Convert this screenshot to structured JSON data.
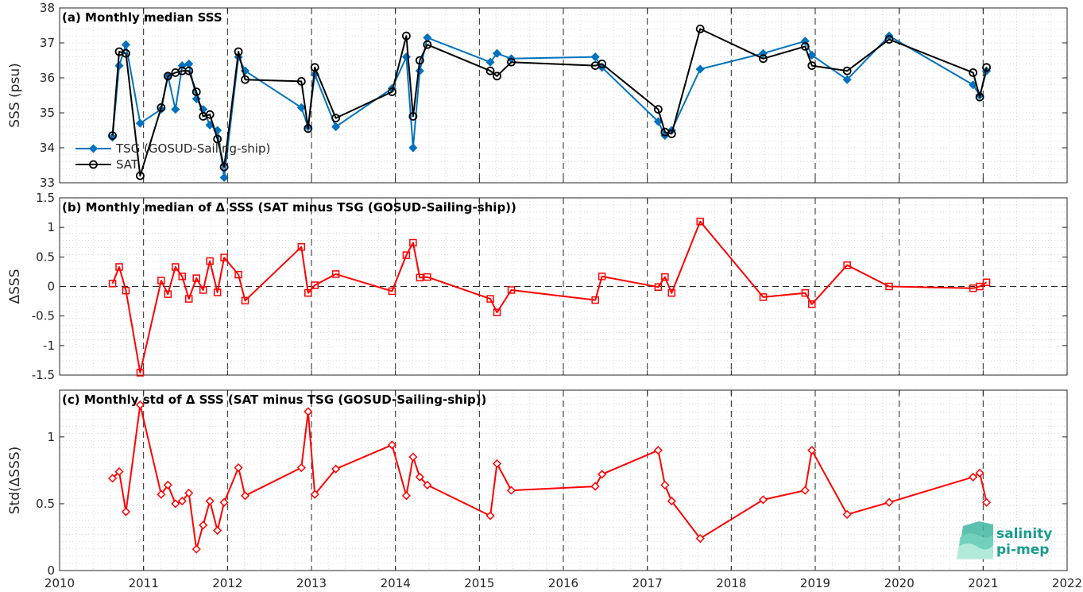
{
  "colors": {
    "tsg": "#0072BD",
    "sat": "#000000",
    "delta": "#FF0000",
    "grid": "#cccccc",
    "axis": "#262626"
  },
  "logo": {
    "line1": "salinity",
    "line2": "pi-mep",
    "icon": "salinity-wave-icon"
  },
  "x_ticks": [
    "2010",
    "2011",
    "2012",
    "2013",
    "2014",
    "2015",
    "2016",
    "2017",
    "2018",
    "2019",
    "2020",
    "2021",
    "2022"
  ],
  "chart_data": [
    {
      "type": "line",
      "title": "(a) Monthly median SSS",
      "ylabel": "SSS (psu)",
      "xlim": [
        2010,
        2022
      ],
      "ylim": [
        33,
        38
      ],
      "yticks": [
        "33",
        "34",
        "35",
        "36",
        "37",
        "38"
      ],
      "legend_position": "bottom-left",
      "series": [
        {
          "name": "TSG (GOSUD-Sailing-ship)",
          "marker": "diamond",
          "x": [
            2010.63,
            2010.71,
            2010.79,
            2010.96,
            2011.21,
            2011.29,
            2011.38,
            2011.46,
            2011.54,
            2011.63,
            2011.71,
            2011.79,
            2011.88,
            2011.96,
            2012.13,
            2012.21,
            2012.88,
            2012.96,
            2013.04,
            2013.29,
            2013.96,
            2014.13,
            2014.21,
            2014.29,
            2014.38,
            2015.13,
            2015.21,
            2015.38,
            2016.38,
            2016.46,
            2017.13,
            2017.21,
            2017.29,
            2017.63,
            2018.38,
            2018.88,
            2018.96,
            2019.38,
            2019.88,
            2020.88,
            2020.96,
            2021.04
          ],
          "y": [
            34.3,
            36.35,
            36.95,
            34.7,
            35.1,
            36.05,
            35.1,
            36.35,
            36.4,
            35.4,
            35.1,
            34.65,
            34.5,
            33.15,
            36.6,
            36.2,
            35.15,
            34.6,
            36.1,
            34.6,
            35.7,
            36.6,
            34.0,
            36.2,
            37.15,
            36.45,
            36.7,
            36.55,
            36.6,
            36.3,
            34.75,
            34.35,
            34.5,
            36.25,
            36.7,
            37.05,
            36.65,
            35.95,
            37.2,
            35.8,
            35.5,
            36.2
          ]
        },
        {
          "name": "SAT",
          "marker": "circle",
          "x": [
            2010.63,
            2010.71,
            2010.79,
            2010.96,
            2011.21,
            2011.29,
            2011.38,
            2011.46,
            2011.54,
            2011.63,
            2011.71,
            2011.79,
            2011.88,
            2011.96,
            2012.13,
            2012.21,
            2012.88,
            2012.96,
            2013.04,
            2013.29,
            2013.96,
            2014.13,
            2014.21,
            2014.29,
            2014.38,
            2015.13,
            2015.21,
            2015.38,
            2016.38,
            2016.46,
            2017.13,
            2017.21,
            2017.29,
            2017.63,
            2018.38,
            2018.88,
            2018.96,
            2019.38,
            2019.88,
            2020.88,
            2020.96,
            2021.04
          ],
          "y": [
            34.35,
            36.75,
            36.7,
            33.2,
            35.15,
            36.05,
            36.15,
            36.2,
            36.2,
            35.6,
            34.9,
            34.95,
            34.25,
            33.45,
            36.75,
            35.95,
            35.9,
            34.55,
            36.3,
            34.85,
            35.6,
            37.2,
            34.9,
            36.5,
            36.95,
            36.2,
            36.05,
            36.45,
            36.35,
            36.4,
            35.1,
            34.45,
            34.4,
            37.4,
            36.55,
            36.9,
            36.35,
            36.2,
            37.1,
            36.15,
            35.45,
            36.3
          ]
        }
      ]
    },
    {
      "type": "line",
      "title": "(b) Monthly median of Δ SSS (SAT minus TSG (GOSUD-Sailing-ship))",
      "ylabel": "ΔSSS",
      "xlim": [
        2010,
        2022
      ],
      "ylim": [
        -1.5,
        1.5
      ],
      "yticks": [
        "-1.5",
        "-1",
        "-0.5",
        "0",
        "0.5",
        "1",
        "1.5"
      ],
      "zero_line": true,
      "series": [
        {
          "marker": "square",
          "x": [
            2010.63,
            2010.71,
            2010.79,
            2010.96,
            2011.21,
            2011.29,
            2011.38,
            2011.46,
            2011.54,
            2011.63,
            2011.71,
            2011.79,
            2011.88,
            2011.96,
            2012.13,
            2012.21,
            2012.88,
            2012.96,
            2013.04,
            2013.29,
            2013.96,
            2014.13,
            2014.21,
            2014.29,
            2014.38,
            2015.13,
            2015.21,
            2015.38,
            2016.38,
            2016.46,
            2017.13,
            2017.21,
            2017.29,
            2017.63,
            2018.38,
            2018.88,
            2018.96,
            2019.38,
            2019.88,
            2020.88,
            2020.96,
            2021.04
          ],
          "y": [
            0.05,
            0.33,
            -0.07,
            -1.46,
            0.1,
            -0.13,
            0.33,
            0.17,
            -0.21,
            0.14,
            -0.06,
            0.43,
            -0.1,
            0.49,
            0.2,
            -0.24,
            0.67,
            -0.11,
            0.02,
            0.21,
            -0.08,
            0.53,
            0.74,
            0.15,
            0.16,
            -0.21,
            -0.44,
            -0.06,
            -0.23,
            0.17,
            -0.01,
            0.16,
            -0.11,
            1.1,
            -0.18,
            -0.11,
            -0.3,
            0.36,
            0.0,
            -0.03,
            0.0,
            0.07
          ]
        }
      ]
    },
    {
      "type": "line",
      "title": "(c) Monthly std of Δ SSS (SAT minus TSG (GOSUD-Sailing-ship))",
      "ylabel": "Std(ΔSSS)",
      "xlim": [
        2010,
        2022
      ],
      "ylim": [
        0,
        1.35
      ],
      "yticks": [
        "0",
        "0.5",
        "1"
      ],
      "series": [
        {
          "marker": "diamond",
          "x": [
            2010.63,
            2010.71,
            2010.79,
            2010.96,
            2011.21,
            2011.29,
            2011.38,
            2011.46,
            2011.54,
            2011.63,
            2011.71,
            2011.79,
            2011.88,
            2011.96,
            2012.13,
            2012.21,
            2012.88,
            2012.96,
            2013.04,
            2013.29,
            2013.96,
            2014.13,
            2014.21,
            2014.29,
            2014.38,
            2015.13,
            2015.21,
            2015.38,
            2016.38,
            2016.46,
            2017.13,
            2017.21,
            2017.29,
            2017.63,
            2018.38,
            2018.88,
            2018.96,
            2019.38,
            2019.88,
            2020.88,
            2020.96,
            2021.04
          ],
          "y": [
            0.69,
            0.74,
            0.44,
            1.24,
            0.57,
            0.64,
            0.5,
            0.52,
            0.58,
            0.16,
            0.34,
            0.52,
            0.3,
            0.51,
            0.77,
            0.56,
            0.77,
            1.19,
            0.57,
            0.76,
            0.94,
            0.56,
            0.85,
            0.7,
            0.64,
            0.41,
            0.8,
            0.6,
            0.63,
            0.72,
            0.9,
            0.64,
            0.52,
            0.24,
            0.53,
            0.6,
            0.9,
            0.42,
            0.51,
            0.7,
            0.73,
            0.51
          ]
        }
      ]
    }
  ]
}
